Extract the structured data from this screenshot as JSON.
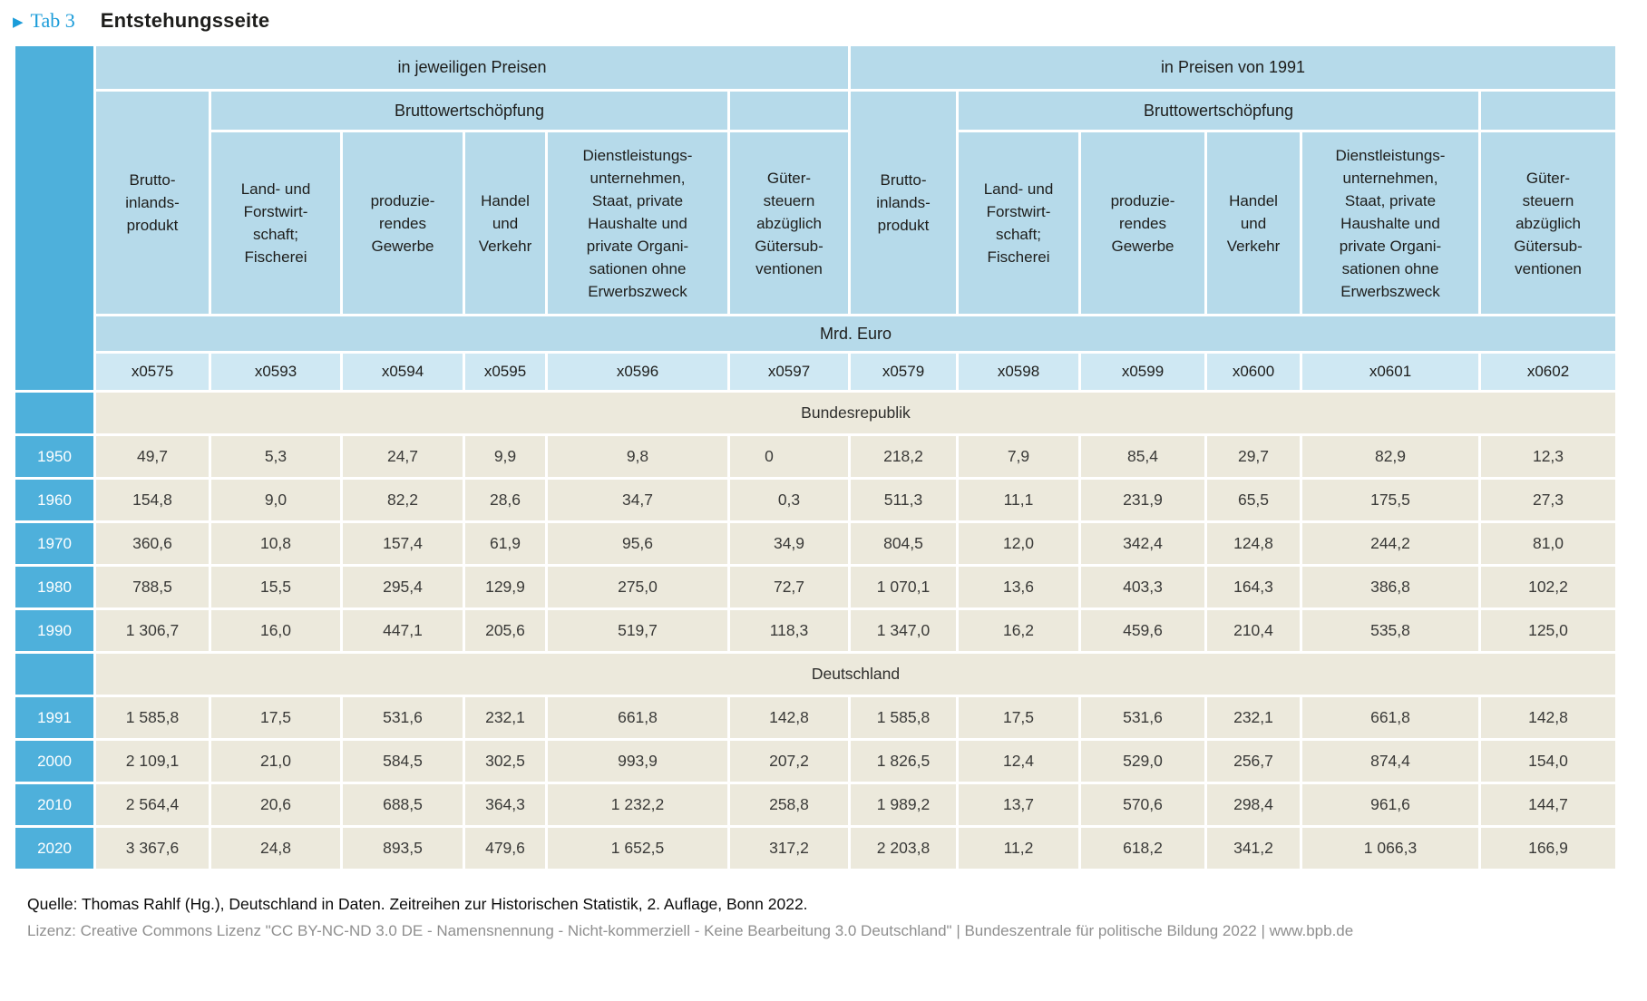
{
  "title": {
    "marker_icon": "triangle-right",
    "tab_label": "Tab 3",
    "heading": "Entstehungsseite"
  },
  "chart_data": {
    "type": "table",
    "unit_label": "Mrd. Euro",
    "halves": [
      {
        "band": "in jeweiligen Preisen",
        "group_label": "Bruttowertschöpfung",
        "columns": [
          {
            "label": "Brutto-\ninlands-\nprodukt",
            "code": "x0575"
          },
          {
            "label": "Land- und\nForstwirt-\nschaft;\nFischerei",
            "code": "x0593"
          },
          {
            "label": "produzie-\nrendes\nGewerbe",
            "code": "x0594"
          },
          {
            "label": "Handel\nund\nVerkehr",
            "code": "x0595"
          },
          {
            "label": "Dienstleistungs-\nunternehmen,\nStaat, private\nHaushalte und\nprivate Organi-\nsationen ohne\nErwerbszweck",
            "code": "x0596"
          },
          {
            "label": "Güter-\nsteuern\nabzüglich\nGütersub-\nventionen",
            "code": "x0597"
          }
        ]
      },
      {
        "band": "in Preisen von 1991",
        "group_label": "Bruttowertschöpfung",
        "columns": [
          {
            "label": "Brutto-\ninlands-\nprodukt",
            "code": "x0579"
          },
          {
            "label": "Land- und\nForstwirt-\nschaft;\nFischerei",
            "code": "x0598"
          },
          {
            "label": "produzie-\nrendes\nGewerbe",
            "code": "x0599"
          },
          {
            "label": "Handel\nund\nVerkehr",
            "code": "x0600"
          },
          {
            "label": "Dienstleistungs-\nunternehmen,\nStaat, private\nHaushalte und\nprivate Organi-\nsationen ohne\nErwerbszweck",
            "code": "x0601"
          },
          {
            "label": "Güter-\nsteuern\nabzüglich\nGütersub-\nventionen",
            "code": "x0602"
          }
        ]
      }
    ],
    "sections": [
      {
        "label": "Bundesrepublik",
        "rows": [
          {
            "year": "1950",
            "values": [
              "49,7",
              "5,3",
              "24,7",
              "9,9",
              "9,8",
              "0",
              "218,2",
              "7,9",
              "85,4",
              "29,7",
              "82,9",
              "12,3"
            ]
          },
          {
            "year": "1960",
            "values": [
              "154,8",
              "9,0",
              "82,2",
              "28,6",
              "34,7",
              "0,3",
              "511,3",
              "11,1",
              "231,9",
              "65,5",
              "175,5",
              "27,3"
            ]
          },
          {
            "year": "1970",
            "values": [
              "360,6",
              "10,8",
              "157,4",
              "61,9",
              "95,6",
              "34,9",
              "804,5",
              "12,0",
              "342,4",
              "124,8",
              "244,2",
              "81,0"
            ]
          },
          {
            "year": "1980",
            "values": [
              "788,5",
              "15,5",
              "295,4",
              "129,9",
              "275,0",
              "72,7",
              "1 070,1",
              "13,6",
              "403,3",
              "164,3",
              "386,8",
              "102,2"
            ]
          },
          {
            "year": "1990",
            "values": [
              "1 306,7",
              "16,0",
              "447,1",
              "205,6",
              "519,7",
              "118,3",
              "1 347,0",
              "16,2",
              "459,6",
              "210,4",
              "535,8",
              "125,0"
            ]
          }
        ]
      },
      {
        "label": "Deutschland",
        "rows": [
          {
            "year": "1991",
            "values": [
              "1 585,8",
              "17,5",
              "531,6",
              "232,1",
              "661,8",
              "142,8",
              "1 585,8",
              "17,5",
              "531,6",
              "232,1",
              "661,8",
              "142,8"
            ]
          },
          {
            "year": "2000",
            "values": [
              "2 109,1",
              "21,0",
              "584,5",
              "302,5",
              "993,9",
              "207,2",
              "1 826,5",
              "12,4",
              "529,0",
              "256,7",
              "874,4",
              "154,0"
            ]
          },
          {
            "year": "2010",
            "values": [
              "2 564,4",
              "20,6",
              "688,5",
              "364,3",
              "1 232,2",
              "258,8",
              "1 989,2",
              "13,7",
              "570,6",
              "298,4",
              "961,6",
              "144,7"
            ]
          },
          {
            "year": "2020",
            "values": [
              "3 367,6",
              "24,8",
              "893,5",
              "479,6",
              "1 652,5",
              "317,2",
              "2 203,8",
              "11,2",
              "618,2",
              "341,2",
              "1 066,3",
              "166,9"
            ]
          }
        ]
      }
    ]
  },
  "footer": {
    "source_line": "Quelle: Thomas Rahlf (Hg.), Deutschland in Daten. Zeitreihen zur Historischen Statistik, 2. Auflage, Bonn 2022.",
    "license_line": "Lizenz: Creative Commons Lizenz \"CC BY-NC-ND 3.0 DE - Namensnennung - Nicht-kommerziell - Keine Bearbeitung 3.0 Deutschland\" | Bundeszentrale für politische Bildung 2022 | www.bpb.de"
  },
  "colors": {
    "accent_blue": "#1b9cd9",
    "deep_blue": "#4eb0db",
    "header_blue": "#b6daea",
    "code_blue": "#cfe8f3",
    "row_beige": "#ece9dc"
  }
}
